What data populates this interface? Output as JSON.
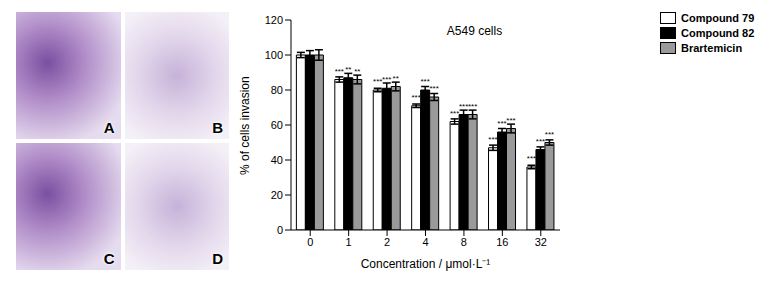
{
  "image_panels": {
    "labels": [
      "A",
      "B",
      "C",
      "D"
    ]
  },
  "chart_data": {
    "type": "bar",
    "title": "A549 cells",
    "x_label": "Concentration / μmol·L⁻¹",
    "y_label": "% of cells invasion",
    "categories": [
      "0",
      "1",
      "2",
      "4",
      "8",
      "16",
      "32"
    ],
    "series": [
      {
        "name": "Compound 79",
        "color": "#ffffff",
        "values": [
          100,
          86,
          80,
          71,
          62,
          47,
          36
        ],
        "errors": [
          1.5,
          1.5,
          1,
          1,
          1.5,
          1.5,
          1
        ],
        "annotations": [
          null,
          "***",
          "***",
          "***",
          "***",
          "***",
          "***"
        ]
      },
      {
        "name": "Compound 82",
        "color": "#000000",
        "values": [
          100,
          87,
          81,
          80,
          66,
          56,
          46
        ],
        "errors": [
          2.5,
          2.5,
          3,
          2,
          2.5,
          2,
          1.5
        ],
        "annotations": [
          null,
          "**",
          "***",
          "***",
          "***",
          "***",
          "***"
        ]
      },
      {
        "name": "Brartemicin",
        "color": "#9a9a9a",
        "values": [
          100,
          86,
          82,
          76,
          66,
          58,
          50
        ],
        "errors": [
          3,
          2.5,
          2.5,
          2,
          2.5,
          2.5,
          1.5
        ],
        "annotations": [
          null,
          "**",
          "**",
          "***",
          "***",
          "***",
          "***"
        ]
      }
    ],
    "ylim": [
      0,
      120
    ],
    "yticks": [
      0,
      20,
      40,
      60,
      80,
      100,
      120
    ],
    "legend": "upper right",
    "grid": false
  }
}
